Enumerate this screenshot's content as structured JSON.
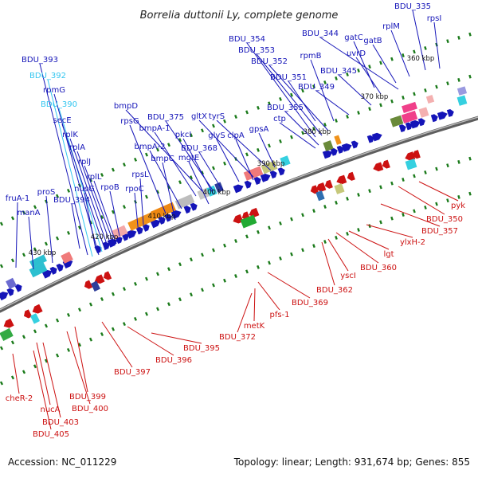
{
  "title": "Borrelia duttonii Ly, complete genome",
  "footer": {
    "accession": "Accession: NC_011229",
    "topology": "Topology: linear; Length: 931,674 bp; Genes: 855"
  },
  "colors": {
    "forward_gene": "#1414b8",
    "forward_gene_cyan": "#33c6f0",
    "reverse_gene": "#cc1111",
    "backbone": "#777777",
    "tick": "#1a7a1a"
  },
  "kbp_marks": [
    "360 kbp",
    "370 kbp",
    "380 kbp",
    "390 kbp",
    "400 kbp",
    "410 kbp",
    "420 kbp",
    "430 kbp"
  ],
  "forward_genes": [
    {
      "label": "BDU_335",
      "style": "fwd"
    },
    {
      "label": "rpsI",
      "style": "fwd"
    },
    {
      "label": "rplM",
      "style": "fwd"
    },
    {
      "label": "gatB",
      "style": "fwd"
    },
    {
      "label": "gatC",
      "style": "fwd"
    },
    {
      "label": "BDU_344",
      "style": "fwd"
    },
    {
      "label": "uvrD",
      "style": "fwd"
    },
    {
      "label": "BDU_345",
      "style": "fwd"
    },
    {
      "label": "rpmB",
      "style": "fwd"
    },
    {
      "label": "BDU_349",
      "style": "fwd"
    },
    {
      "label": "BDU_351",
      "style": "fwd"
    },
    {
      "label": "BDU_352",
      "style": "fwd"
    },
    {
      "label": "BDU_353",
      "style": "fwd"
    },
    {
      "label": "BDU_354",
      "style": "fwd"
    },
    {
      "label": "BDU_355",
      "style": "fwd"
    },
    {
      "label": "ctp",
      "style": "fwd"
    },
    {
      "label": "gpsA",
      "style": "fwd"
    },
    {
      "label": "gltX",
      "style": "fwd"
    },
    {
      "label": "tyrS",
      "style": "fwd"
    },
    {
      "label": "glyS",
      "style": "fwd"
    },
    {
      "label": "clpA",
      "style": "fwd"
    },
    {
      "label": "BDU_375",
      "style": "fwd"
    },
    {
      "label": "bmpD",
      "style": "fwd"
    },
    {
      "label": "bmpA-1",
      "style": "fwd"
    },
    {
      "label": "pkcI",
      "style": "fwd"
    },
    {
      "label": "BDU_368",
      "style": "fwd"
    },
    {
      "label": "rpsG",
      "style": "fwd"
    },
    {
      "label": "bmpA-2",
      "style": "fwd"
    },
    {
      "label": "mgtE",
      "style": "fwd"
    },
    {
      "label": "bmpC",
      "style": "fwd"
    },
    {
      "label": "rpsL",
      "style": "fwd"
    },
    {
      "label": "rpoC",
      "style": "fwd"
    },
    {
      "label": "rpoB",
      "style": "fwd"
    },
    {
      "label": "BDU_393",
      "style": "fwd"
    },
    {
      "label": "BDU_392",
      "style": "cyan"
    },
    {
      "label": "rpmG",
      "style": "fwd"
    },
    {
      "label": "BDU_390",
      "style": "cyan"
    },
    {
      "label": "secE",
      "style": "fwd"
    },
    {
      "label": "rplK",
      "style": "fwd"
    },
    {
      "label": "rplA",
      "style": "fwd"
    },
    {
      "label": "rplJ",
      "style": "fwd"
    },
    {
      "label": "rplL",
      "style": "fwd"
    },
    {
      "label": "nusG",
      "style": "fwd"
    },
    {
      "label": "BDU_394",
      "style": "fwd"
    },
    {
      "label": "proS",
      "style": "fwd"
    },
    {
      "label": "fruA-1",
      "style": "fwd"
    },
    {
      "label": "manA",
      "style": "fwd"
    }
  ],
  "reverse_genes": [
    "pyk",
    "BDU_350",
    "BDU_357",
    "ylxH-2",
    "lgt",
    "BDU_360",
    "yscI",
    "BDU_362",
    "BDU_369",
    "pfs-1",
    "metK",
    "BDU_372",
    "BDU_395",
    "BDU_396",
    "BDU_397",
    "BDU_399",
    "BDU_400",
    "nucA",
    "BDU_403",
    "BDU_405",
    "cheR-2"
  ]
}
